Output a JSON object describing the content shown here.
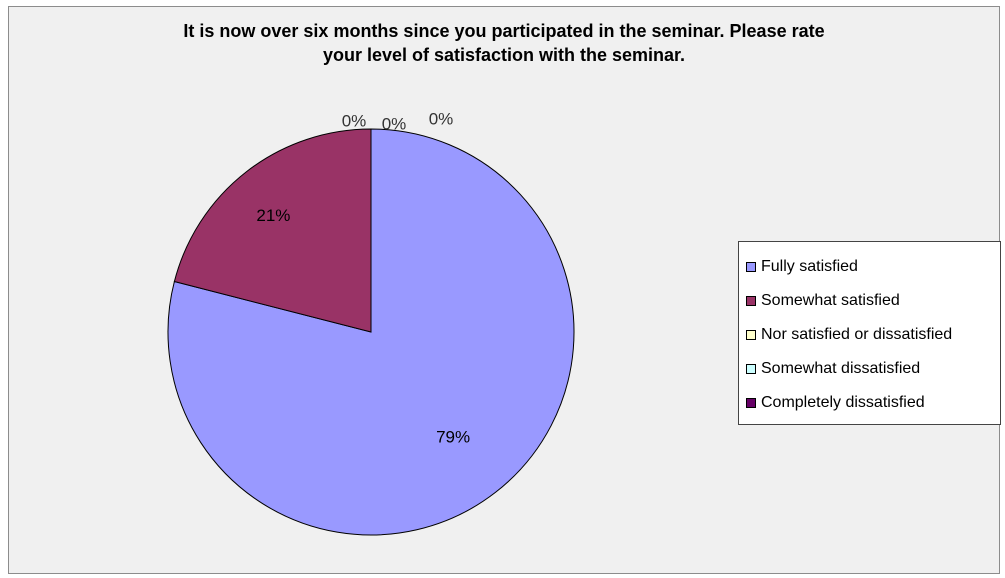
{
  "chart_data": {
    "type": "pie",
    "title": "It is now over six months since you participated in the seminar. Please rate your level of satisfaction with the seminar.",
    "title_lines": [
      "It is now over six months since you participated in the seminar. Please rate",
      "your level of satisfaction with the seminar."
    ],
    "categories": [
      "Fully satisfied",
      "Somewhat satisfied",
      "Nor satisfied or dissatisfied",
      "Somewhat dissatisfied",
      "Completely dissatisfied"
    ],
    "values": [
      79,
      21,
      0,
      0,
      0
    ],
    "data_labels": [
      "79%",
      "21%",
      "0%",
      "0%",
      "0%"
    ],
    "colors": [
      "#9999ff",
      "#993366",
      "#ffffcc",
      "#ccffff",
      "#660066"
    ],
    "legend_position": "right",
    "start_angle_deg": 0,
    "direction": "clockwise"
  }
}
